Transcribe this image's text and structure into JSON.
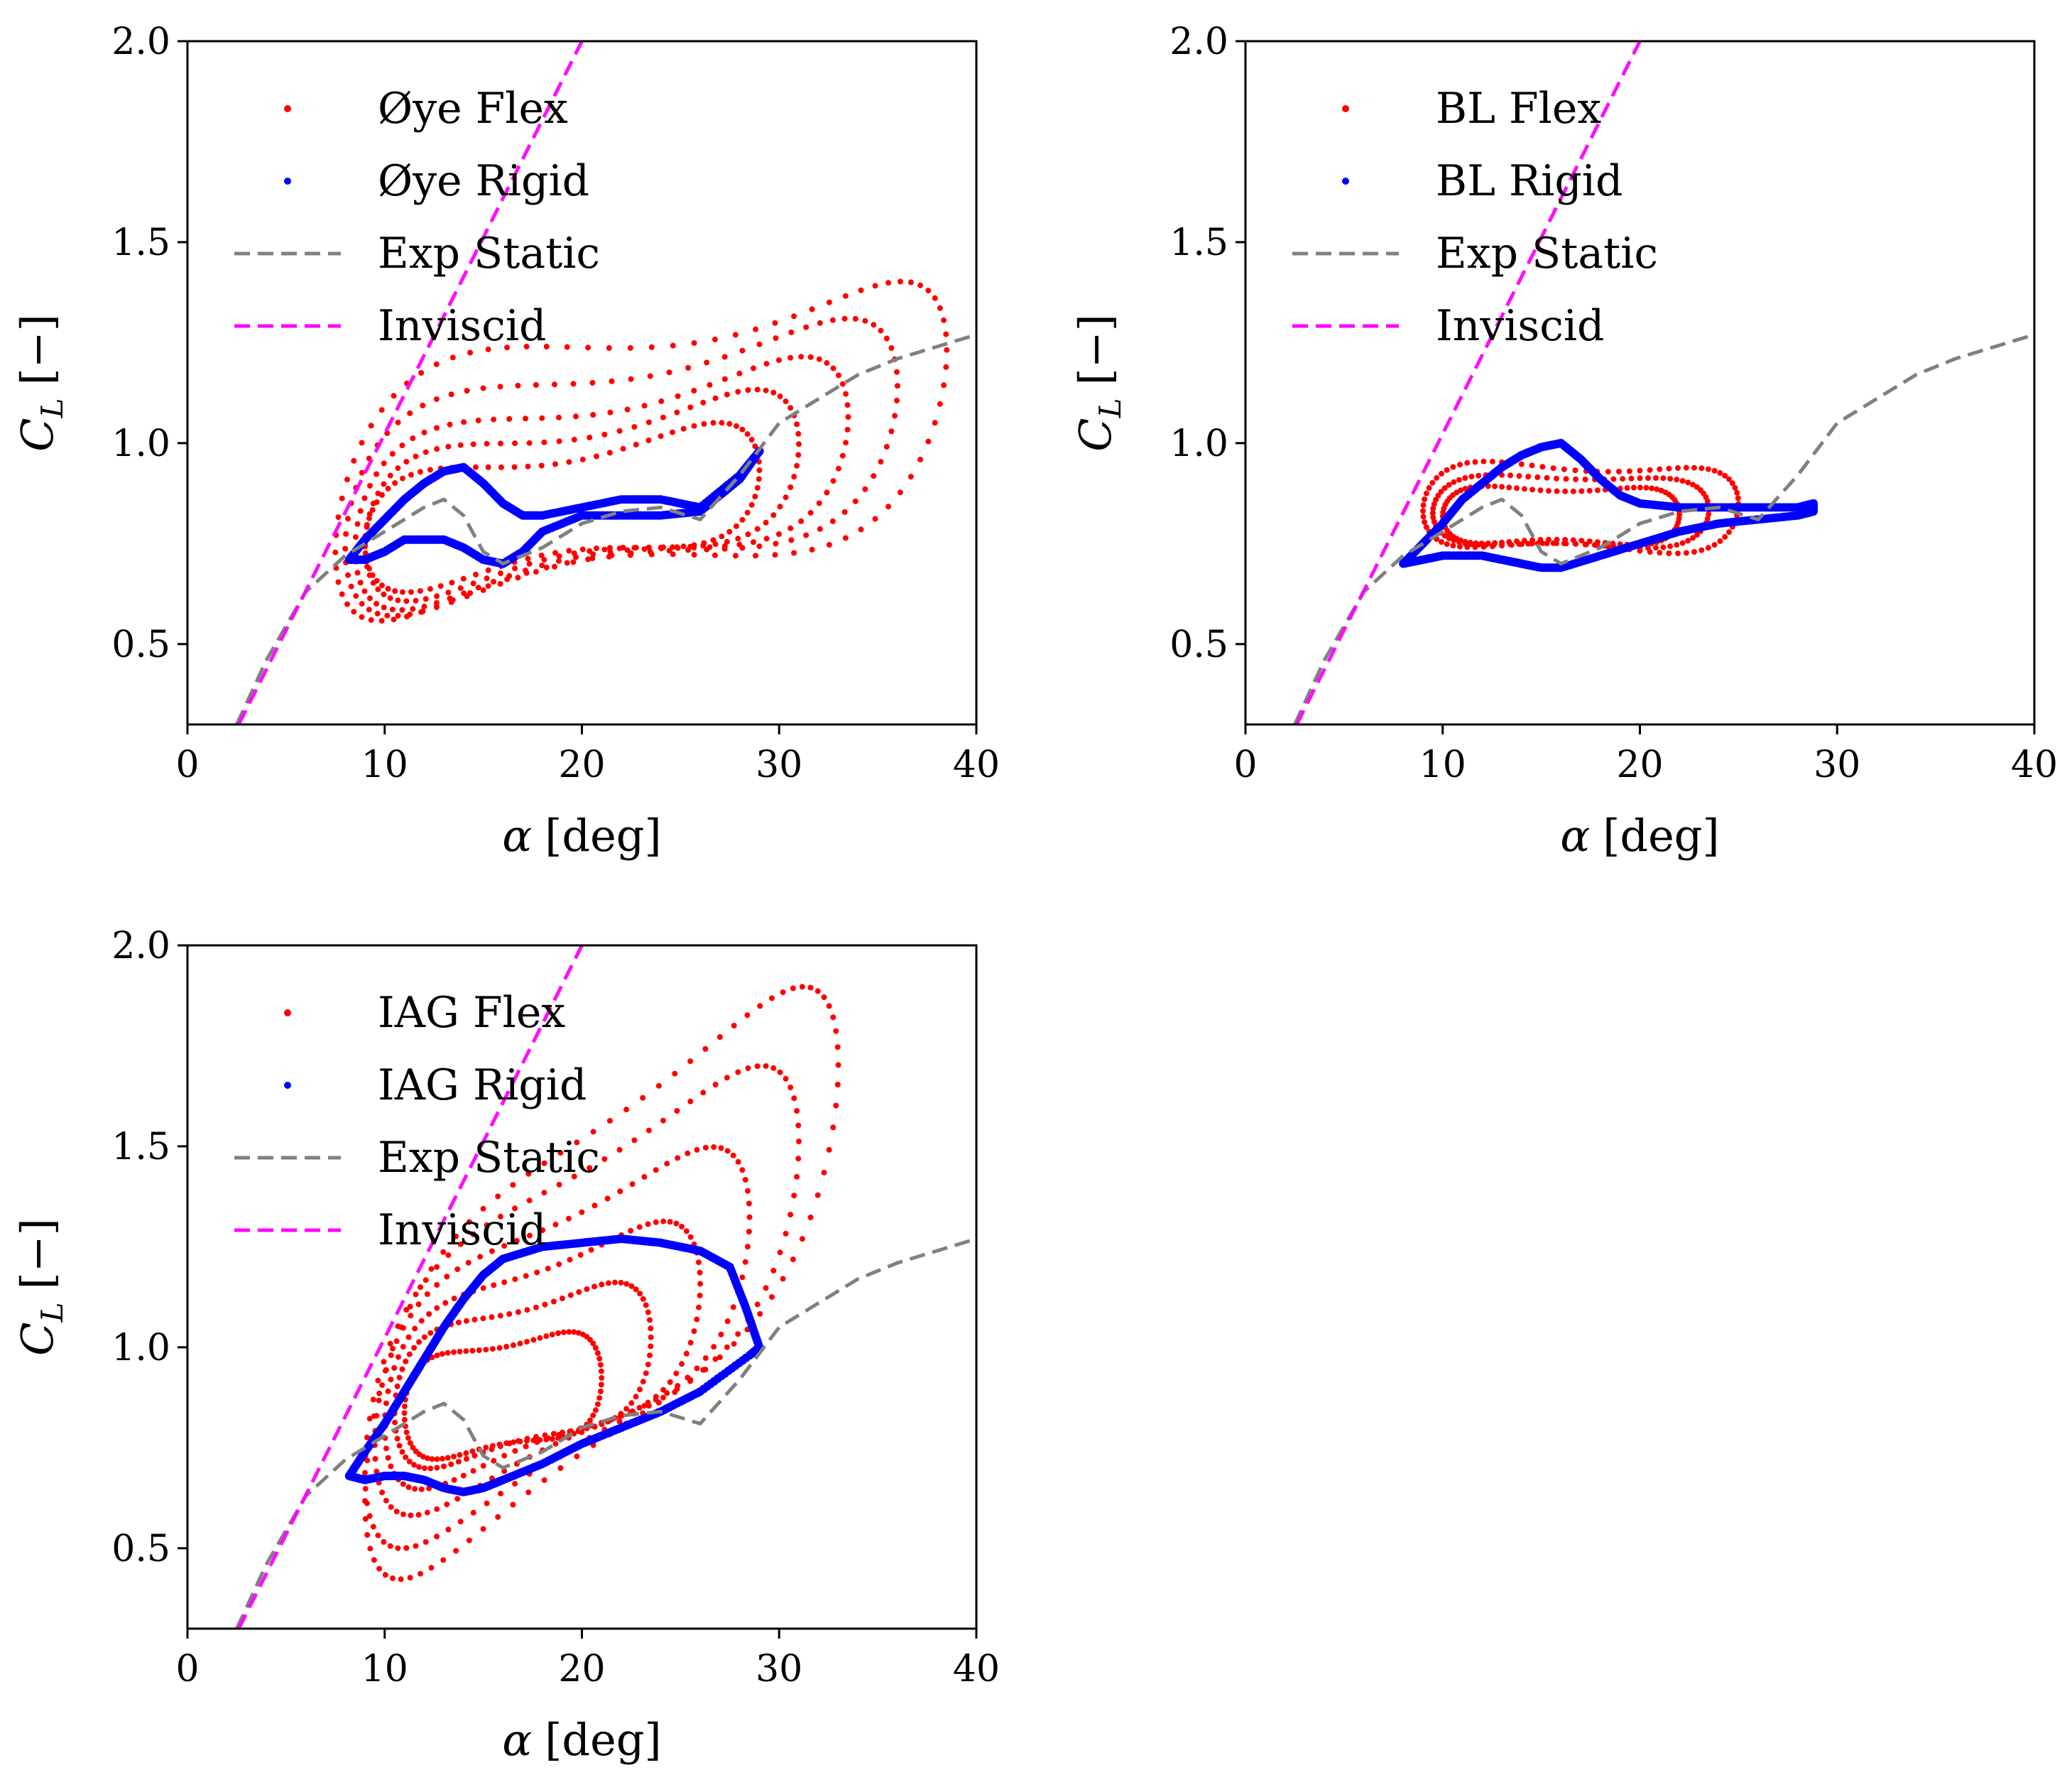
{
  "chart_data": [
    {
      "type": "scatter",
      "xlabel_symbol": "α",
      "xlabel_unit": "[deg]",
      "ylabel_symbol": "C",
      "ylabel_sub": "L",
      "ylabel_unit": "[−]",
      "xlim": [
        0,
        40
      ],
      "ylim": [
        0.3,
        2.0
      ],
      "xticks": [
        "0",
        "10",
        "20",
        "30",
        "40"
      ],
      "yticks": [
        "0.5",
        "1.0",
        "1.5",
        "2.0"
      ],
      "grid": false,
      "legend_position": "top-left",
      "series": [
        {
          "name": "Øye Flex",
          "kind": "loops",
          "color": "#ff0000",
          "loops": [
            {
              "cx": 23,
              "cy": 0.98,
              "rx": 15.5,
              "ry": 0.34,
              "tilt": 0.36,
              "amp": 0.1,
              "ph": 0.6
            },
            {
              "cx": 22,
              "cy": 0.94,
              "rx": 14.0,
              "ry": 0.29,
              "tilt": 0.35,
              "amp": 0.08,
              "ph": 0.4
            },
            {
              "cx": 21,
              "cy": 0.9,
              "rx": 12.5,
              "ry": 0.24,
              "tilt": 0.33,
              "amp": 0.07,
              "ph": 0.3
            },
            {
              "cx": 20,
              "cy": 0.87,
              "rx": 11.0,
              "ry": 0.2,
              "tilt": 0.3,
              "amp": 0.06,
              "ph": 0.2
            },
            {
              "cx": 19,
              "cy": 0.84,
              "rx": 10.0,
              "ry": 0.16,
              "tilt": 0.25,
              "amp": 0.05,
              "ph": 0.1
            }
          ]
        },
        {
          "name": "Øye Rigid",
          "kind": "polygon",
          "color": "#0000ff",
          "x": [
            8.2,
            9,
            10,
            11,
            12,
            13,
            14,
            15,
            16,
            17,
            18,
            20,
            22,
            24,
            26,
            28,
            29,
            29,
            28,
            26,
            24,
            22,
            20,
            18,
            17,
            16,
            15,
            14,
            13,
            12,
            11,
            10,
            9,
            8.2
          ],
          "y": [
            0.71,
            0.76,
            0.81,
            0.86,
            0.9,
            0.93,
            0.94,
            0.9,
            0.85,
            0.82,
            0.82,
            0.84,
            0.86,
            0.86,
            0.84,
            0.92,
            0.98,
            0.98,
            0.91,
            0.83,
            0.82,
            0.82,
            0.82,
            0.78,
            0.73,
            0.7,
            0.71,
            0.74,
            0.76,
            0.76,
            0.76,
            0.73,
            0.71,
            0.71
          ]
        },
        {
          "name": "Exp Static",
          "kind": "line",
          "color": "#808080",
          "x": [
            2.5,
            4,
            6,
            8,
            10,
            12,
            13,
            14,
            15,
            16,
            18,
            20,
            22,
            24,
            26,
            28,
            30,
            32,
            34,
            36,
            38,
            40
          ],
          "y": [
            0.3,
            0.46,
            0.63,
            0.72,
            0.78,
            0.84,
            0.86,
            0.82,
            0.73,
            0.7,
            0.74,
            0.8,
            0.83,
            0.84,
            0.81,
            0.92,
            1.05,
            1.11,
            1.17,
            1.21,
            1.24,
            1.27
          ]
        },
        {
          "name": "Inviscid",
          "kind": "line",
          "color": "#ff00ff",
          "x": [
            2.6,
            20.0
          ],
          "y": [
            0.3,
            2.0
          ]
        }
      ]
    },
    {
      "type": "scatter",
      "xlabel_symbol": "α",
      "xlabel_unit": "[deg]",
      "ylabel_symbol": "C",
      "ylabel_sub": "L",
      "ylabel_unit": "[−]",
      "xlim": [
        0,
        40
      ],
      "ylim": [
        0.3,
        2.0
      ],
      "xticks": [
        "0",
        "10",
        "20",
        "30",
        "40"
      ],
      "yticks": [
        "0.5",
        "1.0",
        "1.5",
        "2.0"
      ],
      "grid": false,
      "legend_position": "top-left",
      "series": [
        {
          "name": "BL Flex",
          "kind": "loops",
          "color": "#ff0000",
          "loops": [
            {
              "cx": 17.0,
              "cy": 0.84,
              "rx": 8.0,
              "ry": 0.12,
              "tilt": 0.0,
              "amp": 0.03,
              "ph": 0.3
            },
            {
              "cx": 16.5,
              "cy": 0.83,
              "rx": 7.0,
              "ry": 0.1,
              "tilt": 0.0,
              "amp": 0.02,
              "ph": 0.2
            },
            {
              "cx": 16.0,
              "cy": 0.82,
              "rx": 6.0,
              "ry": 0.08,
              "tilt": 0.0,
              "amp": 0.02,
              "ph": 0.1
            }
          ]
        },
        {
          "name": "BL Rigid",
          "kind": "polygon",
          "color": "#0000ff",
          "x": [
            8,
            9,
            10,
            11,
            12,
            13,
            14,
            15,
            16,
            17,
            18,
            19,
            20,
            22,
            24,
            26,
            28,
            28.8,
            28.8,
            28,
            26,
            24,
            22,
            20,
            18,
            16,
            15,
            14,
            13,
            12,
            10,
            9,
            8
          ],
          "y": [
            0.7,
            0.75,
            0.8,
            0.86,
            0.9,
            0.94,
            0.97,
            0.99,
            1.0,
            0.96,
            0.91,
            0.87,
            0.85,
            0.84,
            0.84,
            0.84,
            0.84,
            0.85,
            0.83,
            0.82,
            0.81,
            0.8,
            0.78,
            0.75,
            0.72,
            0.69,
            0.69,
            0.7,
            0.71,
            0.72,
            0.72,
            0.71,
            0.7
          ]
        },
        {
          "name": "Exp Static",
          "kind": "line",
          "color": "#808080",
          "x": [
            2.5,
            4,
            6,
            8,
            10,
            12,
            13,
            14,
            15,
            16,
            18,
            20,
            22,
            24,
            26,
            28,
            30,
            32,
            34,
            36,
            38,
            40
          ],
          "y": [
            0.3,
            0.46,
            0.63,
            0.72,
            0.78,
            0.84,
            0.86,
            0.82,
            0.73,
            0.7,
            0.74,
            0.8,
            0.83,
            0.84,
            0.81,
            0.92,
            1.05,
            1.11,
            1.17,
            1.21,
            1.24,
            1.27
          ]
        },
        {
          "name": "Inviscid",
          "kind": "line",
          "color": "#ff00ff",
          "x": [
            2.6,
            20.0
          ],
          "y": [
            0.3,
            2.0
          ]
        }
      ]
    },
    {
      "type": "scatter",
      "xlabel_symbol": "α",
      "xlabel_unit": "[deg]",
      "ylabel_symbol": "C",
      "ylabel_sub": "L",
      "ylabel_unit": "[−]",
      "xlim": [
        0,
        40
      ],
      "ylim": [
        0.3,
        2.0
      ],
      "xticks": [
        "0",
        "10",
        "20",
        "30",
        "40"
      ],
      "yticks": [
        "0.5",
        "1.0",
        "1.5",
        "2.0"
      ],
      "grid": false,
      "legend_position": "top-left",
      "series": [
        {
          "name": "IAG Flex",
          "kind": "loops",
          "color": "#ff0000",
          "loops": [
            {
              "cx": 21.0,
              "cy": 1.16,
              "rx": 12.0,
              "ry": 0.46,
              "tilt": 1.2,
              "amp": 0.08,
              "ph": 0.5
            },
            {
              "cx": 20.0,
              "cy": 1.1,
              "rx": 11.0,
              "ry": 0.4,
              "tilt": 1.0,
              "amp": 0.07,
              "ph": 0.4
            },
            {
              "cx": 19.0,
              "cy": 1.04,
              "rx": 9.5,
              "ry": 0.33,
              "tilt": 0.8,
              "amp": 0.06,
              "ph": 0.3
            },
            {
              "cx": 18.0,
              "cy": 0.98,
              "rx": 8.0,
              "ry": 0.26,
              "tilt": 0.6,
              "amp": 0.05,
              "ph": 0.2
            },
            {
              "cx": 17.0,
              "cy": 0.93,
              "rx": 6.5,
              "ry": 0.2,
              "tilt": 0.4,
              "amp": 0.04,
              "ph": 0.1
            },
            {
              "cx": 16.0,
              "cy": 0.88,
              "rx": 5.0,
              "ry": 0.15,
              "tilt": 0.25,
              "amp": 0.03,
              "ph": 0.0
            }
          ]
        },
        {
          "name": "IAG Rigid",
          "kind": "polygon",
          "color": "#0000ff",
          "x": [
            8.2,
            9,
            10,
            11,
            12,
            13,
            14,
            15,
            16,
            18,
            20,
            22,
            24,
            26,
            27.5,
            28.3,
            29,
            28.5,
            26,
            24,
            22,
            20,
            18,
            16,
            15,
            14,
            13,
            12,
            11,
            10,
            9,
            8.2
          ],
          "y": [
            0.68,
            0.74,
            0.81,
            0.89,
            0.97,
            1.05,
            1.12,
            1.18,
            1.22,
            1.25,
            1.26,
            1.27,
            1.26,
            1.24,
            1.2,
            1.1,
            1.0,
            0.98,
            0.89,
            0.84,
            0.8,
            0.76,
            0.71,
            0.67,
            0.65,
            0.64,
            0.65,
            0.67,
            0.68,
            0.68,
            0.67,
            0.68
          ]
        },
        {
          "name": "Exp Static",
          "kind": "line",
          "color": "#808080",
          "x": [
            2.5,
            4,
            6,
            8,
            10,
            12,
            13,
            14,
            15,
            16,
            18,
            20,
            22,
            24,
            26,
            28,
            30,
            32,
            34,
            36,
            38,
            40
          ],
          "y": [
            0.3,
            0.46,
            0.63,
            0.72,
            0.78,
            0.84,
            0.86,
            0.82,
            0.73,
            0.7,
            0.74,
            0.8,
            0.83,
            0.84,
            0.81,
            0.92,
            1.05,
            1.11,
            1.17,
            1.21,
            1.24,
            1.27
          ]
        },
        {
          "name": "Inviscid",
          "kind": "line",
          "color": "#ff00ff",
          "x": [
            2.6,
            20.0
          ],
          "y": [
            0.3,
            2.0
          ]
        }
      ]
    }
  ]
}
